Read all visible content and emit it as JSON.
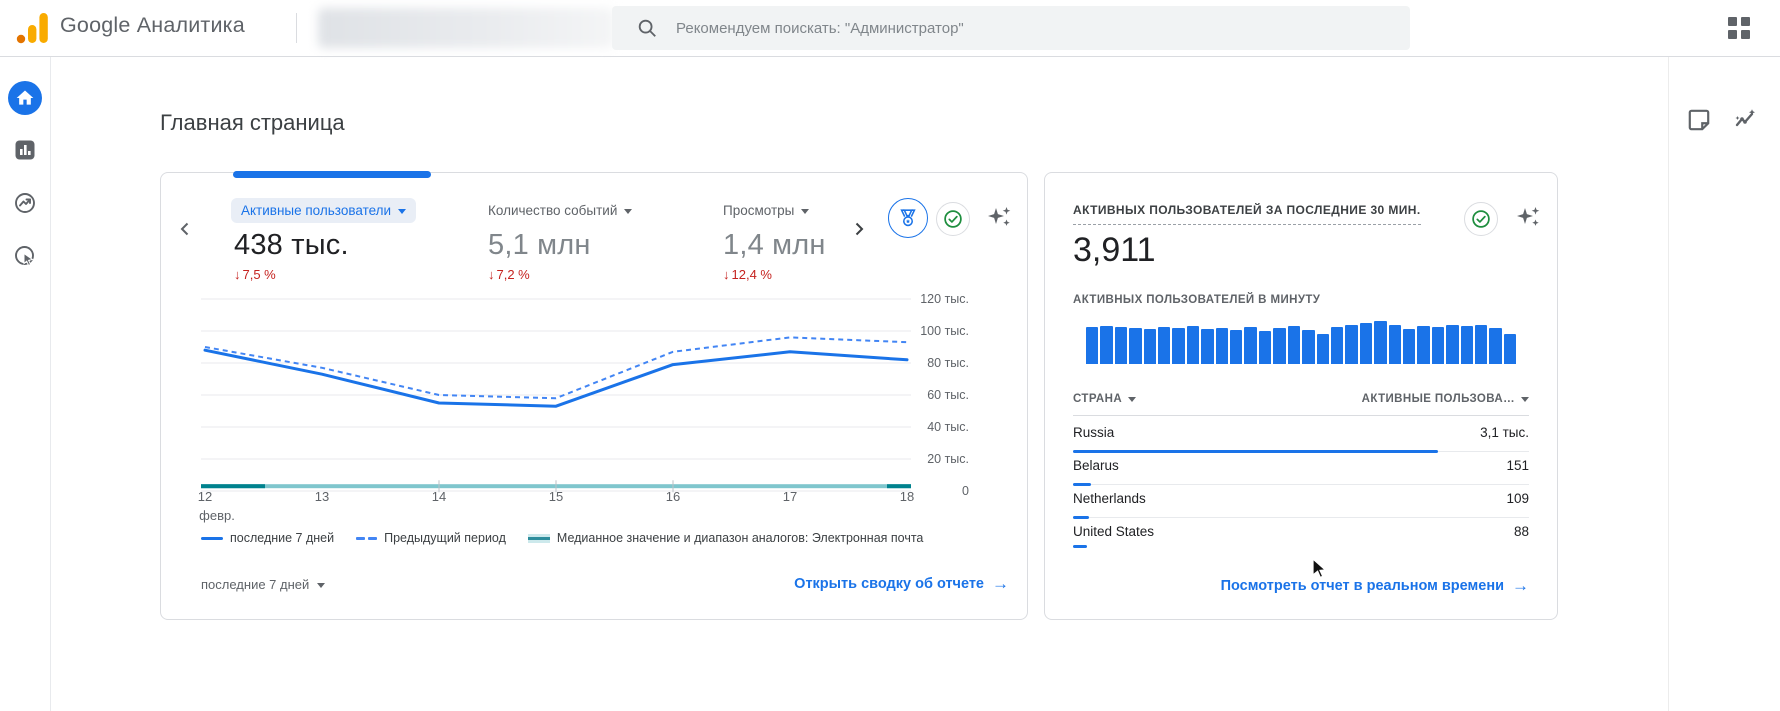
{
  "header": {
    "brand": "Google Аналитика",
    "search": {
      "placeholder": "Рекомендуем поискать: \"Администратор\""
    }
  },
  "page": {
    "title": "Главная страница"
  },
  "overview": {
    "tabs": [
      {
        "label": "Активные пользователи",
        "value": "438 тыс.",
        "delta": "7,5 %",
        "selected": true
      },
      {
        "label": "Количество событий",
        "value": "5,1 млн",
        "delta": "7,2 %",
        "selected": false
      },
      {
        "label": "Просмотры",
        "value": "1,4 млн",
        "delta": "12,4 %",
        "selected": false
      }
    ],
    "legend": {
      "current": "последние 7 дней",
      "previous": "Предыдущий период",
      "median": "Медианное значение и диапазон аналогов: Электронная почта"
    },
    "period_dropdown": "последние 7 дней",
    "open_report_link": "Открыть сводку об отчете"
  },
  "realtime": {
    "title": "АКТИВНЫХ ПОЛЬЗОВАТЕЛЕЙ ЗА ПОСЛЕДНИЕ 30 МИН.",
    "value": "3,911",
    "per_minute_label": "АКТИВНЫХ ПОЛЬЗОВАТЕЛЕЙ В МИНУТУ",
    "table": {
      "country_header": "СТРАНА",
      "users_header": "АКТИВНЫЕ ПОЛЬЗОВА…",
      "rows": [
        {
          "country": "Russia",
          "value": "3,1 тыс.",
          "bar_fraction": 0.8
        },
        {
          "country": "Belarus",
          "value": "151",
          "bar_fraction": 0.039
        },
        {
          "country": "Netherlands",
          "value": "109",
          "bar_fraction": 0.034
        },
        {
          "country": "United States",
          "value": "88",
          "bar_fraction": 0.028
        }
      ]
    },
    "realtime_link": "Посмотреть отчет в реальном времени"
  },
  "colors": {
    "accent_blue": "#1a73e8",
    "dashed_blue": "#4285f4",
    "negative_red": "#c5221f",
    "check_green": "#1e8e3e",
    "teal_dark": "#00828e",
    "teal_light": "#7fc6cd",
    "logo_orange": "#f9ab00",
    "logo_orange_dark": "#e37400",
    "gray_text": "#5f6368"
  },
  "chart_data": [
    {
      "type": "line",
      "title": "Активные пользователи — последние 7 дней",
      "x_tick_labels": [
        "12",
        "13",
        "14",
        "15",
        "16",
        "17",
        "18"
      ],
      "x_sublabel": "февр.",
      "series": [
        {
          "name": "последние 7 дней",
          "style": "solid",
          "values": [
            88000,
            73000,
            55000,
            53000,
            79000,
            87000,
            82000
          ]
        },
        {
          "name": "Предыдущий период",
          "style": "dashed",
          "values": [
            90000,
            77000,
            60000,
            58000,
            87000,
            96000,
            93000
          ]
        },
        {
          "name": "Медианное значение и диапазон аналогов: Электронная почта",
          "style": "band",
          "values": [
            3000,
            3000,
            3000,
            3000,
            3000,
            3000,
            3000
          ]
        }
      ],
      "ylim": [
        0,
        120000
      ],
      "ytick_step": 20000,
      "ytick_labels": [
        "120 тыс.",
        "100 тыс.",
        "80 тыс.",
        "60 тыс.",
        "40 тыс.",
        "20 тыс.",
        "0"
      ],
      "grid": "horizontal",
      "legend_position": "bottom"
    },
    {
      "type": "bar",
      "title": "АКТИВНЫХ ПОЛЬЗОВАТЕЛЕЙ В МИНУТУ",
      "bar_count": 30,
      "values_relative": [
        36,
        37,
        36,
        35,
        34,
        36,
        35,
        37,
        34,
        35,
        33,
        36,
        32,
        35,
        37,
        33,
        29,
        36,
        38,
        40,
        42,
        38,
        34,
        37,
        36,
        38,
        37,
        38,
        35,
        29
      ]
    },
    {
      "type": "table",
      "columns": [
        "СТРАНА",
        "АКТИВНЫЕ ПОЛЬЗОВА…"
      ],
      "rows": [
        [
          "Russia",
          "3,1 тыс."
        ],
        [
          "Belarus",
          "151"
        ],
        [
          "Netherlands",
          "109"
        ],
        [
          "United States",
          "88"
        ]
      ]
    }
  ]
}
